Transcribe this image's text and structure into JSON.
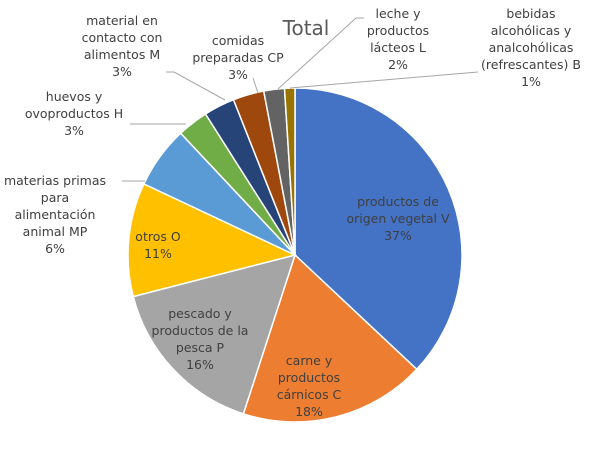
{
  "chart_data": {
    "type": "pie",
    "title": "Total",
    "slices": [
      {
        "name": "productos de origen vegetal V",
        "value": 37,
        "label": "37%",
        "color": "#4472C4"
      },
      {
        "name": "carne y productos cárnicos C",
        "value": 18,
        "label": "18%",
        "color": "#ED7D31"
      },
      {
        "name": "pescado y productos de la pesca P",
        "value": 16,
        "label": "16%",
        "color": "#A5A5A5"
      },
      {
        "name": "otros O",
        "value": 11,
        "label": "11%",
        "color": "#FFC000"
      },
      {
        "name": "materias primas para alimentación animal MP",
        "value": 6,
        "label": "6%",
        "color": "#5B9BD5"
      },
      {
        "name": "huevos y ovoproductos H",
        "value": 3,
        "label": "3%",
        "color": "#70AD47"
      },
      {
        "name": "material en contacto con alimentos M",
        "value": 3,
        "label": "3%",
        "color": "#264478"
      },
      {
        "name": "comidas preparadas CP",
        "value": 3,
        "label": "3%",
        "color": "#9E480E"
      },
      {
        "name": "leche y productos lácteos L",
        "value": 2,
        "label": "2%",
        "color": "#636363"
      },
      {
        "name": "bebidas alcohólicas y analcohólicas (refrescantes) B",
        "value": 1,
        "label": "1%",
        "color": "#997300"
      }
    ]
  }
}
